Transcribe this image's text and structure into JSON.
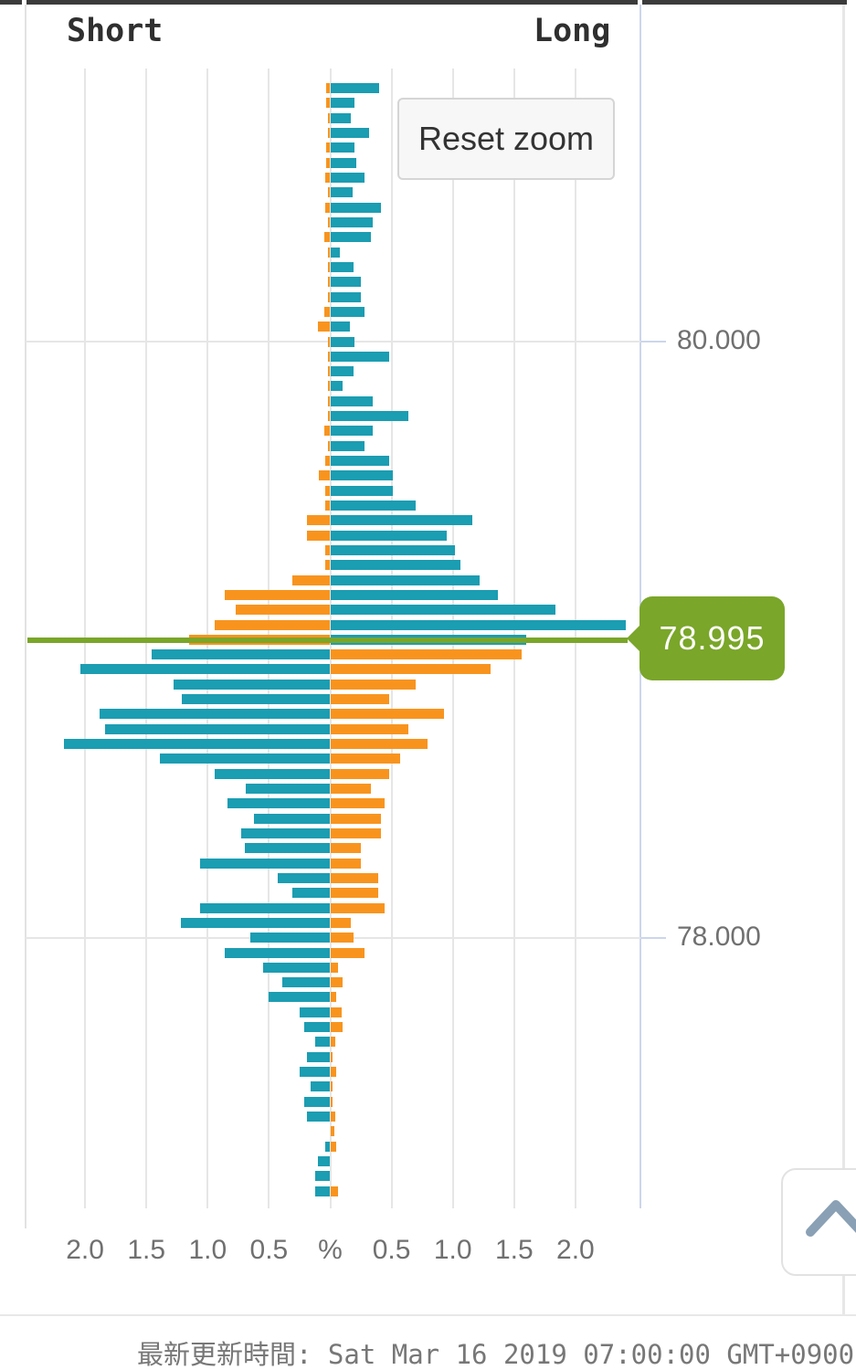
{
  "header": {
    "short_label": "Short",
    "long_label": "Long"
  },
  "buttons": {
    "reset_zoom": "Reset zoom",
    "scroll_top_icon": "chevron-up-icon"
  },
  "price_flag": {
    "value": "78.995"
  },
  "footer": {
    "updated_text": "最新更新時間: Sat Mar 16 2019 07:00:00 GMT+0900"
  },
  "colors": {
    "teal": "#1b9db2",
    "orange": "#f8941e",
    "green": "#7aa629",
    "axis_line": "#ccd6eb",
    "grid": "#e6e6e6",
    "label_gray": "#707070"
  },
  "chart_data": {
    "type": "bar",
    "subtype": "horizontal-pyramid-order-book",
    "title": "",
    "xlabel": "%",
    "xlim": [
      -2.5,
      2.5
    ],
    "x_tick_values": [
      -2.0,
      -1.5,
      -1.0,
      -0.5,
      0,
      0.5,
      1.0,
      1.5,
      2.0
    ],
    "x_tick_labels": [
      "2.0",
      "1.5",
      "1.0",
      "0.5",
      "%",
      "0.5",
      "1.0",
      "1.5",
      "2.0"
    ],
    "y_axis": {
      "tick_prices": [
        80.0,
        78.0
      ],
      "tick_labels": [
        "80.000",
        "78.000"
      ]
    },
    "grid": true,
    "legend_position": "top (Short left / Long right)",
    "current_price": 78.995,
    "bucket_size": 0.05,
    "series": [
      {
        "name": "Short",
        "side": "left",
        "color_above_price": "#f8941e",
        "color_below_price": "#1b9db2"
      },
      {
        "name": "Long",
        "side": "right",
        "color_above_price": "#1b9db2",
        "color_below_price": "#f8941e"
      }
    ],
    "prices": [
      80.85,
      80.8,
      80.75,
      80.7,
      80.65,
      80.6,
      80.55,
      80.5,
      80.45,
      80.4,
      80.35,
      80.3,
      80.25,
      80.2,
      80.15,
      80.1,
      80.05,
      80.0,
      79.95,
      79.9,
      79.85,
      79.8,
      79.75,
      79.7,
      79.65,
      79.6,
      79.55,
      79.5,
      79.45,
      79.4,
      79.35,
      79.3,
      79.25,
      79.2,
      79.15,
      79.1,
      79.05,
      79.0,
      78.95,
      78.9,
      78.85,
      78.8,
      78.75,
      78.7,
      78.65,
      78.6,
      78.55,
      78.5,
      78.45,
      78.4,
      78.35,
      78.3,
      78.25,
      78.2,
      78.15,
      78.1,
      78.05,
      78.0,
      77.95,
      77.9,
      77.85,
      77.8,
      77.75,
      77.7,
      77.65,
      77.6,
      77.55,
      77.5,
      77.45,
      77.4,
      77.35,
      77.3,
      77.25,
      77.2,
      77.15
    ],
    "short_pct": [
      0.03,
      0.03,
      0.02,
      0.02,
      0.03,
      0.03,
      0.04,
      0.02,
      0.04,
      0.02,
      0.05,
      0.02,
      0.02,
      0.02,
      0.02,
      0.05,
      0.1,
      0.02,
      0.02,
      0.02,
      0.02,
      0.02,
      0.02,
      0.05,
      0.02,
      0.04,
      0.09,
      0.04,
      0.04,
      0.19,
      0.19,
      0.04,
      0.04,
      0.31,
      0.86,
      0.77,
      0.94,
      1.15,
      1.46,
      2.04,
      1.28,
      1.21,
      1.88,
      1.84,
      2.17,
      1.39,
      0.94,
      0.69,
      0.84,
      0.62,
      0.73,
      0.7,
      1.06,
      0.43,
      0.31,
      1.06,
      1.22,
      0.65,
      0.86,
      0.55,
      0.39,
      0.5,
      0.25,
      0.21,
      0.12,
      0.19,
      0.25,
      0.16,
      0.21,
      0.19,
      0.0,
      0.04,
      0.1,
      0.12,
      0.12
    ],
    "long_pct": [
      0.4,
      0.2,
      0.17,
      0.32,
      0.2,
      0.21,
      0.28,
      0.18,
      0.41,
      0.35,
      0.33,
      0.08,
      0.19,
      0.25,
      0.25,
      0.28,
      0.16,
      0.2,
      0.48,
      0.19,
      0.1,
      0.35,
      0.64,
      0.35,
      0.28,
      0.48,
      0.51,
      0.51,
      0.7,
      1.16,
      0.95,
      1.02,
      1.06,
      1.22,
      1.37,
      1.84,
      2.41,
      1.6,
      1.56,
      1.31,
      0.7,
      0.48,
      0.93,
      0.64,
      0.79,
      0.57,
      0.48,
      0.33,
      0.44,
      0.41,
      0.41,
      0.25,
      0.25,
      0.39,
      0.39,
      0.44,
      0.17,
      0.19,
      0.28,
      0.06,
      0.1,
      0.05,
      0.09,
      0.1,
      0.04,
      0.02,
      0.05,
      0.02,
      0.02,
      0.04,
      0.03,
      0.05,
      0.0,
      0.0,
      0.06
    ]
  }
}
